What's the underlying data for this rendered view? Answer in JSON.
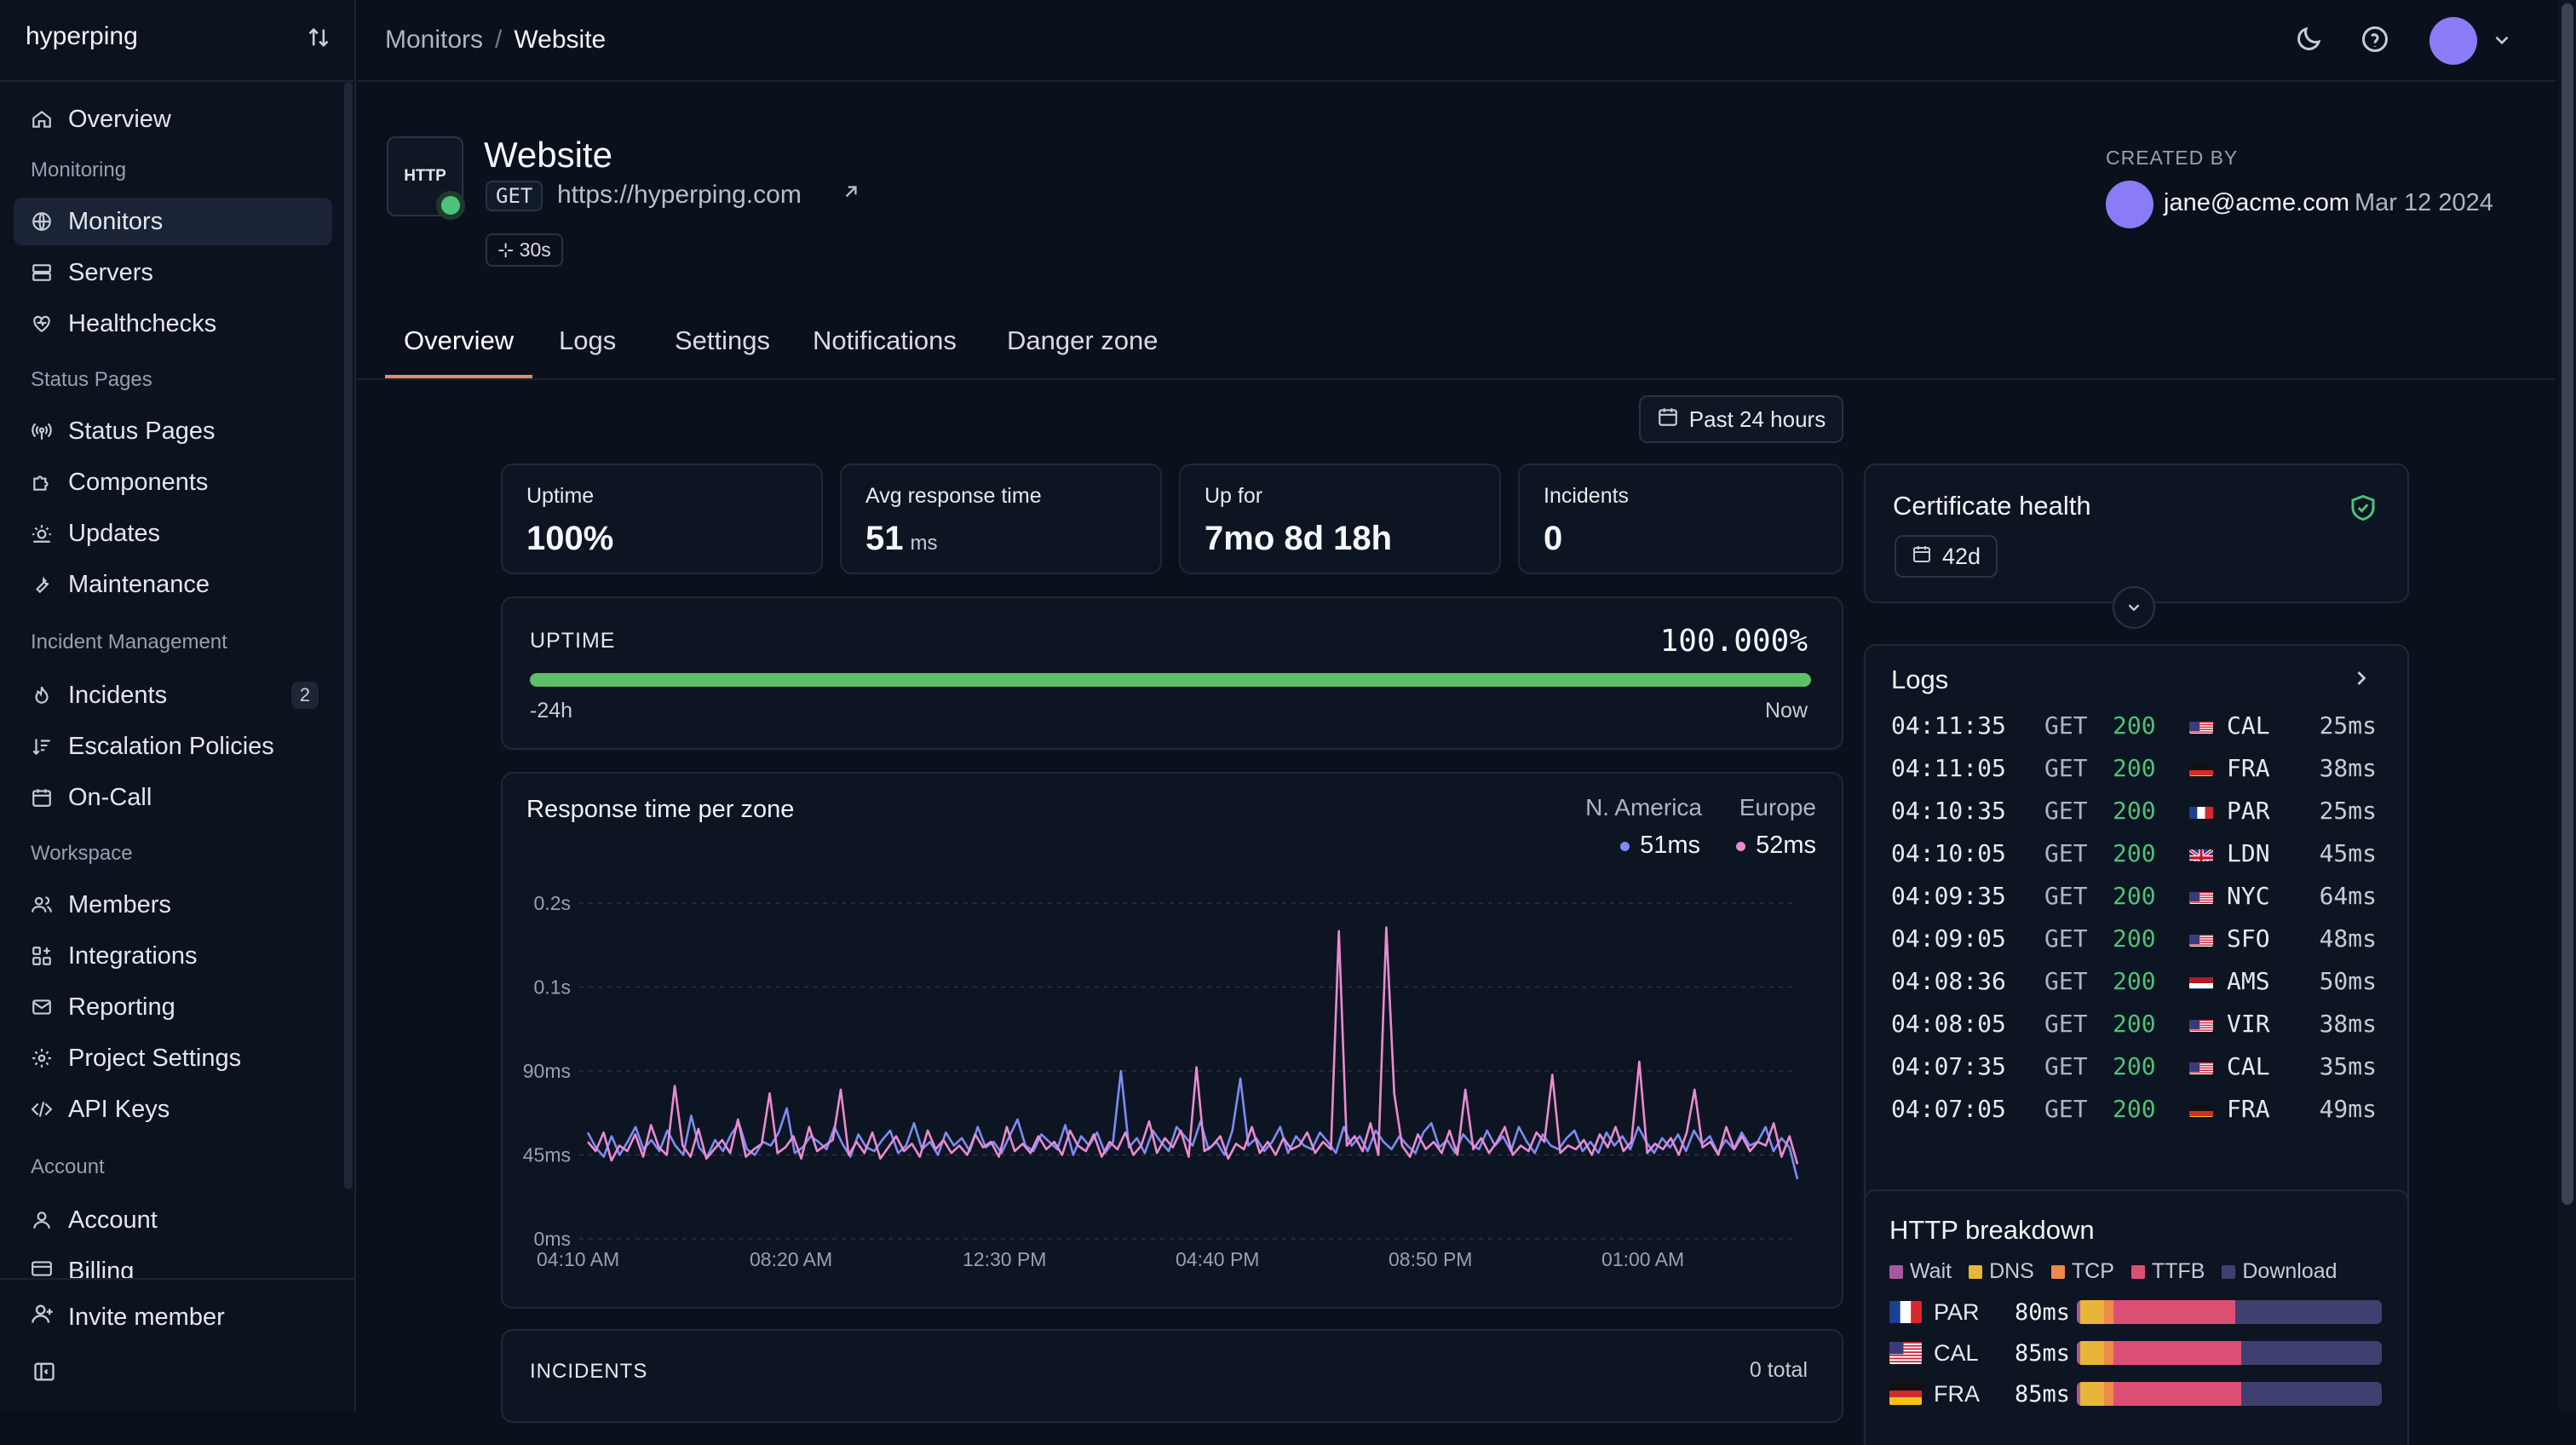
{
  "sidebar": {
    "workspace": "hyperping",
    "overview": "Overview",
    "sections": {
      "monitoring": "Monitoring",
      "status_pages": "Status Pages",
      "incident_management": "Incident Management",
      "workspace": "Workspace",
      "account": "Account"
    },
    "items": {
      "monitors": "Monitors",
      "servers": "Servers",
      "healthchecks": "Healthchecks",
      "status_pages": "Status Pages",
      "components": "Components",
      "updates": "Updates",
      "maintenance": "Maintenance",
      "incidents": "Incidents",
      "incidents_badge": "2",
      "escalation": "Escalation Policies",
      "oncall": "On-Call",
      "members": "Members",
      "integrations": "Integrations",
      "reporting": "Reporting",
      "project_settings": "Project Settings",
      "api_keys": "API Keys",
      "account": "Account",
      "billing": "Billing"
    },
    "invite": "Invite member"
  },
  "breadcrumb": {
    "parent": "Monitors",
    "sep": "/",
    "current": "Website"
  },
  "monitor": {
    "type": "HTTP",
    "name": "Website",
    "method": "GET",
    "url": "https://hyperping.com",
    "interval": "30s",
    "created_by_label": "CREATED BY",
    "created_by_email": "jane@acme.com",
    "created_date": "Mar 12 2024"
  },
  "tabs": [
    "Overview",
    "Logs",
    "Settings",
    "Notifications",
    "Danger zone"
  ],
  "range": "Past 24 hours",
  "stats": [
    {
      "label": "Uptime",
      "value": "100%",
      "unit": ""
    },
    {
      "label": "Avg response time",
      "value": "51",
      "unit": "ms"
    },
    {
      "label": "Up for",
      "value": "7mo 8d 18h",
      "unit": ""
    },
    {
      "label": "Incidents",
      "value": "0",
      "unit": ""
    }
  ],
  "uptime": {
    "label": "UPTIME",
    "percent": "100.000%",
    "fraction": 1.0,
    "from": "-24h",
    "to": "Now"
  },
  "response_chart": {
    "title": "Response time per zone",
    "legend": [
      {
        "name": "N. America",
        "value": "51ms",
        "color": "#7b8cf4"
      },
      {
        "name": "Europe",
        "value": "52ms",
        "color": "#e98bd0"
      }
    ]
  },
  "chart_data": {
    "type": "line",
    "title": "Response time per zone",
    "y_ticks": [
      "0ms",
      "45ms",
      "90ms",
      "0.1s",
      "0.2s"
    ],
    "x_ticks": [
      "04:10 AM",
      "08:20 AM",
      "12:30 PM",
      "04:40 PM",
      "08:50 PM",
      "01:00 AM"
    ],
    "ylim_ms": [
      0,
      180
    ],
    "series": [
      {
        "name": "N. America",
        "color": "#7b8cf4",
        "values": [
          57,
          49,
          44,
          55,
          45,
          52,
          60,
          48,
          53,
          47,
          58,
          50,
          45,
          66,
          49,
          44,
          53,
          47,
          56,
          62,
          48,
          45,
          52,
          50,
          57,
          70,
          46,
          49,
          55,
          52,
          48,
          60,
          51,
          44,
          56,
          49,
          47,
          53,
          58,
          46,
          50,
          62,
          48,
          52,
          45,
          57,
          50,
          54,
          47,
          60,
          49,
          52,
          46,
          55,
          64,
          50,
          47,
          56,
          52,
          48,
          61,
          45,
          55,
          50,
          57,
          46,
          52,
          90,
          49,
          54,
          46,
          58,
          52,
          47,
          60,
          55,
          50,
          63,
          48,
          52,
          45,
          58,
          86,
          50,
          54,
          47,
          52,
          60,
          46,
          55,
          50,
          48,
          57,
          52,
          46,
          60,
          50,
          55,
          47,
          58,
          52,
          48,
          55,
          50,
          46,
          57,
          62,
          49,
          53,
          46,
          56,
          51,
          48,
          58,
          50,
          55,
          47,
          60,
          52,
          46,
          56,
          50,
          48,
          54,
          58,
          47,
          52,
          46,
          57,
          50,
          55,
          48,
          60,
          52,
          46,
          54,
          49,
          56,
          47,
          58,
          51,
          55,
          46,
          53,
          48,
          57,
          50,
          52,
          60,
          47,
          54,
          49,
          32
        ]
      },
      {
        "name": "Europe",
        "color": "#e98bd0",
        "values": [
          52,
          47,
          57,
          42,
          50,
          47,
          56,
          44,
          61,
          49,
          45,
          82,
          50,
          44,
          59,
          43,
          48,
          53,
          46,
          64,
          44,
          48,
          51,
          78,
          46,
          49,
          55,
          43,
          60,
          47,
          50,
          53,
          80,
          45,
          52,
          46,
          57,
          43,
          49,
          55,
          47,
          51,
          44,
          58,
          48,
          53,
          46,
          50,
          45,
          56,
          49,
          52,
          44,
          60,
          47,
          51,
          46,
          55,
          48,
          52,
          45,
          58,
          50,
          47,
          56,
          44,
          52,
          48,
          57,
          45,
          50,
          63,
          46,
          54,
          49,
          58,
          44,
          92,
          47,
          50,
          55,
          43,
          51,
          48,
          60,
          46,
          52,
          45,
          54,
          48,
          50,
          57,
          46,
          52,
          48,
          165,
          50,
          55,
          47,
          62,
          45,
          167,
          78,
          50,
          44,
          56,
          48,
          52,
          46,
          58,
          45,
          80,
          48,
          54,
          46,
          52,
          60,
          45,
          50,
          47,
          57,
          52,
          88,
          46,
          50,
          48,
          53,
          45,
          56,
          49,
          60,
          47,
          52,
          95,
          46,
          51,
          48,
          54,
          45,
          57,
          80,
          49,
          52,
          45,
          60,
          48,
          55,
          47,
          52,
          50,
          62,
          44,
          55,
          40
        ]
      }
    ]
  },
  "incidents_section": {
    "label": "INCIDENTS",
    "total": "0 total"
  },
  "certificate": {
    "title": "Certificate health",
    "days": "42d"
  },
  "logs": {
    "title": "Logs",
    "rows": [
      {
        "time": "04:11:35",
        "method": "GET",
        "code": "200",
        "flag": "us",
        "zone": "CAL",
        "ms": "25ms"
      },
      {
        "time": "04:11:05",
        "method": "GET",
        "code": "200",
        "flag": "de",
        "zone": "FRA",
        "ms": "38ms"
      },
      {
        "time": "04:10:35",
        "method": "GET",
        "code": "200",
        "flag": "fr",
        "zone": "PAR",
        "ms": "25ms"
      },
      {
        "time": "04:10:05",
        "method": "GET",
        "code": "200",
        "flag": "gb",
        "zone": "LDN",
        "ms": "45ms"
      },
      {
        "time": "04:09:35",
        "method": "GET",
        "code": "200",
        "flag": "us",
        "zone": "NYC",
        "ms": "64ms"
      },
      {
        "time": "04:09:05",
        "method": "GET",
        "code": "200",
        "flag": "us",
        "zone": "SFO",
        "ms": "48ms"
      },
      {
        "time": "04:08:36",
        "method": "GET",
        "code": "200",
        "flag": "nl",
        "zone": "AMS",
        "ms": "50ms"
      },
      {
        "time": "04:08:05",
        "method": "GET",
        "code": "200",
        "flag": "us",
        "zone": "VIR",
        "ms": "38ms"
      },
      {
        "time": "04:07:35",
        "method": "GET",
        "code": "200",
        "flag": "us",
        "zone": "CAL",
        "ms": "35ms"
      },
      {
        "time": "04:07:05",
        "method": "GET",
        "code": "200",
        "flag": "de",
        "zone": "FRA",
        "ms": "49ms"
      }
    ]
  },
  "http_breakdown": {
    "title": "HTTP breakdown",
    "legend": [
      {
        "name": "Wait",
        "color": "#a55a9e"
      },
      {
        "name": "DNS",
        "color": "#e9b43a"
      },
      {
        "name": "TCP",
        "color": "#ec8b4a"
      },
      {
        "name": "TTFB",
        "color": "#dc4f74"
      },
      {
        "name": "Download",
        "color": "#3f4070"
      }
    ],
    "rows": [
      {
        "flag": "fr",
        "zone": "PAR",
        "ms": "80ms",
        "parts": [
          1,
          8,
          3,
          40,
          48
        ]
      },
      {
        "flag": "us",
        "zone": "CAL",
        "ms": "85ms",
        "parts": [
          1,
          8,
          3,
          42,
          46
        ]
      },
      {
        "flag": "de",
        "zone": "FRA",
        "ms": "85ms",
        "parts": [
          1,
          8,
          3,
          42,
          46
        ]
      }
    ]
  }
}
